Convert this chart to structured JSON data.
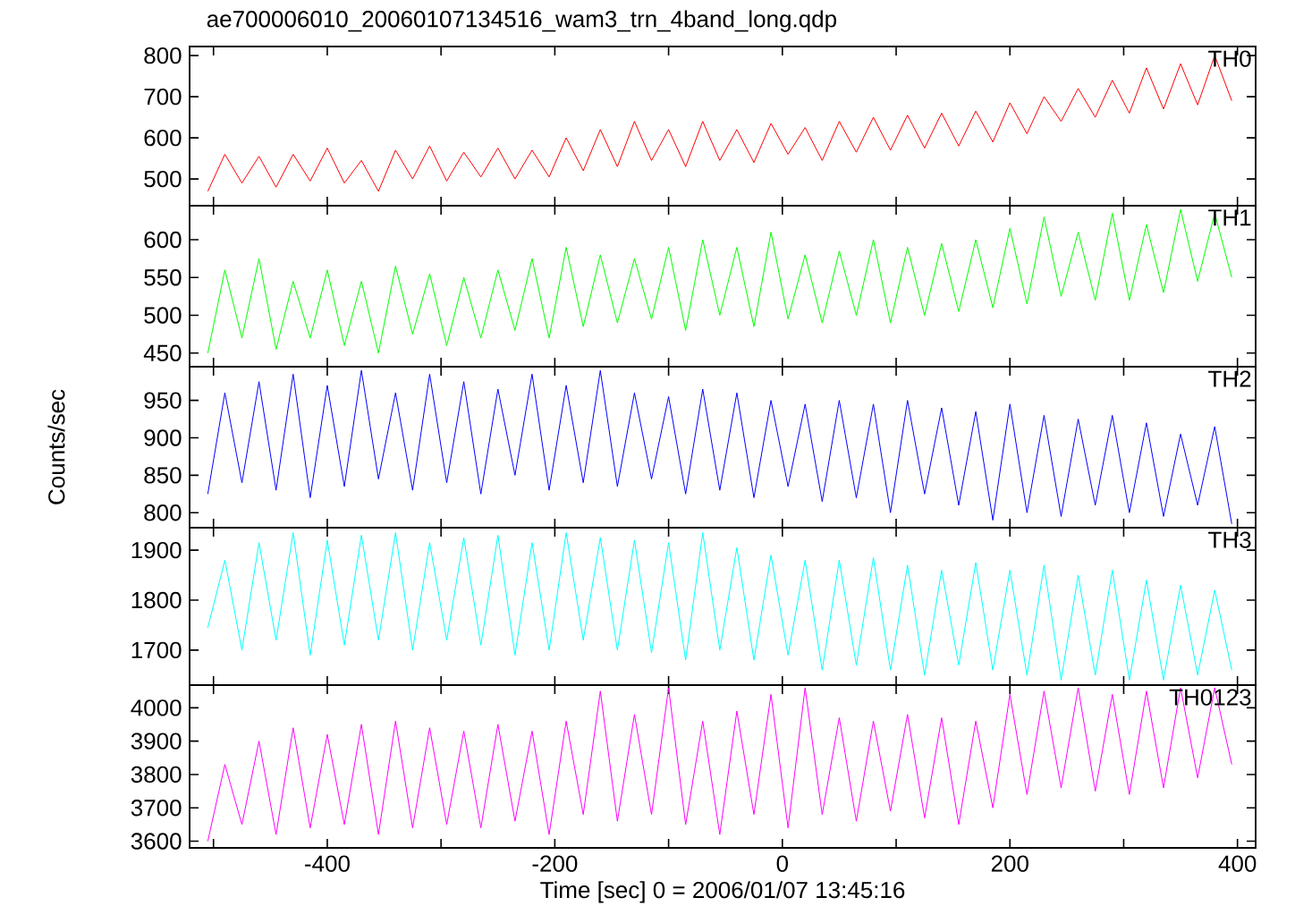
{
  "chart_data": [
    {
      "type": "line",
      "title": "ae700006010_20060107134516_wam3_trn_4band_long.qdp",
      "tick_labels": "y",
      "x": [
        -505,
        -490,
        -475,
        -460,
        -445,
        -430,
        -415,
        -400,
        -385,
        -370,
        -355,
        -340,
        -325,
        -310,
        -295,
        -280,
        -265,
        -250,
        -235,
        -220,
        -205,
        -190,
        -175,
        -160,
        -145,
        -130,
        -115,
        -100,
        -85,
        -70,
        -55,
        -40,
        -25,
        -10,
        5,
        20,
        35,
        50,
        65,
        80,
        95,
        110,
        125,
        140,
        155,
        170,
        185,
        200,
        215,
        230,
        245,
        260,
        275,
        290,
        305,
        320,
        335,
        350,
        365,
        380,
        395
      ],
      "series": [
        {
          "name": "TH0",
          "color": "#ff0000",
          "values": [
            470,
            560,
            490,
            555,
            480,
            560,
            495,
            575,
            490,
            545,
            470,
            570,
            500,
            580,
            495,
            565,
            505,
            575,
            500,
            570,
            505,
            600,
            520,
            620,
            530,
            640,
            545,
            620,
            530,
            640,
            545,
            620,
            540,
            635,
            560,
            625,
            545,
            640,
            565,
            650,
            570,
            655,
            575,
            660,
            580,
            665,
            590,
            685,
            610,
            700,
            640,
            720,
            650,
            740,
            660,
            770,
            670,
            780,
            680,
            800,
            690
          ]
        }
      ],
      "xlim": [
        -521,
        416
      ],
      "ylim": [
        435,
        822
      ],
      "xticks": [
        {
          "value": -500,
          "label": null
        },
        -400,
        {
          "value": -300,
          "label": null
        },
        -200,
        {
          "value": -100,
          "label": null
        },
        0,
        {
          "value": 100,
          "label": null
        },
        200,
        {
          "value": 300,
          "label": null
        },
        400
      ],
      "yticks": [
        500,
        600,
        700,
        800
      ]
    },
    {
      "type": "line",
      "tick_labels": "y",
      "x": [
        -505,
        -490,
        -475,
        -460,
        -445,
        -430,
        -415,
        -400,
        -385,
        -370,
        -355,
        -340,
        -325,
        -310,
        -295,
        -280,
        -265,
        -250,
        -235,
        -220,
        -205,
        -190,
        -175,
        -160,
        -145,
        -130,
        -115,
        -100,
        -85,
        -70,
        -55,
        -40,
        -25,
        -10,
        5,
        20,
        35,
        50,
        65,
        80,
        95,
        110,
        125,
        140,
        155,
        170,
        185,
        200,
        215,
        230,
        245,
        260,
        275,
        290,
        305,
        320,
        335,
        350,
        365,
        380,
        395
      ],
      "series": [
        {
          "name": "TH1",
          "color": "#00ff00",
          "values": [
            450,
            560,
            470,
            575,
            455,
            545,
            470,
            560,
            460,
            545,
            450,
            565,
            475,
            555,
            460,
            550,
            470,
            560,
            480,
            575,
            470,
            590,
            485,
            580,
            490,
            575,
            495,
            590,
            480,
            600,
            500,
            590,
            485,
            610,
            495,
            580,
            490,
            585,
            500,
            600,
            490,
            590,
            500,
            595,
            505,
            600,
            510,
            615,
            515,
            630,
            525,
            610,
            520,
            635,
            520,
            620,
            530,
            640,
            545,
            635,
            550
          ]
        }
      ],
      "xlim": [
        -521,
        416
      ],
      "ylim": [
        432,
        645
      ],
      "xticks": [
        {
          "value": -500,
          "label": null
        },
        -400,
        {
          "value": -300,
          "label": null
        },
        -200,
        {
          "value": -100,
          "label": null
        },
        0,
        {
          "value": 100,
          "label": null
        },
        200,
        {
          "value": 300,
          "label": null
        },
        400
      ],
      "yticks": [
        450,
        500,
        550,
        600
      ]
    },
    {
      "type": "line",
      "ylabel": "Counts/sec",
      "tick_labels": "y",
      "x": [
        -505,
        -490,
        -475,
        -460,
        -445,
        -430,
        -415,
        -400,
        -385,
        -370,
        -355,
        -340,
        -325,
        -310,
        -295,
        -280,
        -265,
        -250,
        -235,
        -220,
        -205,
        -190,
        -175,
        -160,
        -145,
        -130,
        -115,
        -100,
        -85,
        -70,
        -55,
        -40,
        -25,
        -10,
        5,
        20,
        35,
        50,
        65,
        80,
        95,
        110,
        125,
        140,
        155,
        170,
        185,
        200,
        215,
        230,
        245,
        260,
        275,
        290,
        305,
        320,
        335,
        350,
        365,
        380,
        395
      ],
      "series": [
        {
          "name": "TH2",
          "color": "#0000ff",
          "values": [
            825,
            960,
            840,
            975,
            830,
            985,
            820,
            970,
            835,
            990,
            845,
            960,
            830,
            985,
            840,
            975,
            825,
            965,
            850,
            985,
            830,
            970,
            840,
            990,
            835,
            960,
            845,
            955,
            825,
            965,
            830,
            960,
            820,
            950,
            835,
            945,
            815,
            950,
            820,
            945,
            800,
            950,
            825,
            940,
            810,
            935,
            790,
            945,
            800,
            930,
            795,
            925,
            810,
            930,
            800,
            920,
            795,
            905,
            810,
            915,
            785
          ]
        }
      ],
      "xlim": [
        -521,
        416
      ],
      "ylim": [
        780,
        995
      ],
      "xticks": [
        {
          "value": -500,
          "label": null
        },
        -400,
        {
          "value": -300,
          "label": null
        },
        -200,
        {
          "value": -100,
          "label": null
        },
        0,
        {
          "value": 100,
          "label": null
        },
        200,
        {
          "value": 300,
          "label": null
        },
        400
      ],
      "yticks": [
        800,
        850,
        900,
        950
      ]
    },
    {
      "type": "line",
      "tick_labels": "y",
      "x": [
        -505,
        -490,
        -475,
        -460,
        -445,
        -430,
        -415,
        -400,
        -385,
        -370,
        -355,
        -340,
        -325,
        -310,
        -295,
        -280,
        -265,
        -250,
        -235,
        -220,
        -205,
        -190,
        -175,
        -160,
        -145,
        -130,
        -115,
        -100,
        -85,
        -70,
        -55,
        -40,
        -25,
        -10,
        5,
        20,
        35,
        50,
        65,
        80,
        95,
        110,
        125,
        140,
        155,
        170,
        185,
        200,
        215,
        230,
        245,
        260,
        275,
        290,
        305,
        320,
        335,
        350,
        365,
        380,
        395
      ],
      "series": [
        {
          "name": "TH3",
          "color": "#00ffff",
          "values": [
            1745,
            1880,
            1700,
            1915,
            1720,
            1935,
            1690,
            1920,
            1710,
            1930,
            1720,
            1935,
            1700,
            1915,
            1720,
            1925,
            1710,
            1930,
            1690,
            1915,
            1700,
            1935,
            1720,
            1925,
            1700,
            1920,
            1695,
            1915,
            1680,
            1935,
            1700,
            1905,
            1680,
            1890,
            1690,
            1880,
            1660,
            1880,
            1670,
            1885,
            1660,
            1870,
            1650,
            1860,
            1670,
            1875,
            1660,
            1860,
            1650,
            1870,
            1640,
            1850,
            1650,
            1860,
            1640,
            1840,
            1640,
            1830,
            1650,
            1820,
            1660
          ]
        }
      ],
      "xlim": [
        -521,
        416
      ],
      "ylim": [
        1630,
        1945
      ],
      "xticks": [
        {
          "value": -500,
          "label": null
        },
        -400,
        {
          "value": -300,
          "label": null
        },
        -200,
        {
          "value": -100,
          "label": null
        },
        0,
        {
          "value": 100,
          "label": null
        },
        200,
        {
          "value": 300,
          "label": null
        },
        400
      ],
      "yticks": [
        1700,
        1800,
        1900
      ]
    },
    {
      "type": "line",
      "xlabel": "Time [sec] 0 = 2006/01/07 13:45:16",
      "x": [
        -505,
        -490,
        -475,
        -460,
        -445,
        -430,
        -415,
        -400,
        -385,
        -370,
        -355,
        -340,
        -325,
        -310,
        -295,
        -280,
        -265,
        -250,
        -235,
        -220,
        -205,
        -190,
        -175,
        -160,
        -145,
        -130,
        -115,
        -100,
        -85,
        -70,
        -55,
        -40,
        -25,
        -10,
        5,
        20,
        35,
        50,
        65,
        80,
        95,
        110,
        125,
        140,
        155,
        170,
        185,
        200,
        215,
        230,
        245,
        260,
        275,
        290,
        305,
        320,
        335,
        350,
        365,
        380,
        395
      ],
      "series": [
        {
          "name": "TH0123",
          "color": "#ff00ff",
          "values": [
            3600,
            3830,
            3650,
            3900,
            3620,
            3940,
            3640,
            3920,
            3650,
            3950,
            3620,
            3960,
            3640,
            3940,
            3650,
            3930,
            3640,
            3950,
            3660,
            3930,
            3620,
            3960,
            3680,
            4050,
            3660,
            3980,
            3680,
            4060,
            3650,
            3960,
            3620,
            3990,
            3680,
            4040,
            3640,
            4060,
            3680,
            3970,
            3660,
            3960,
            3690,
            3980,
            3670,
            3970,
            3650,
            3960,
            3700,
            4040,
            3740,
            4050,
            3760,
            4060,
            3750,
            4040,
            3740,
            4050,
            3760,
            4060,
            3790,
            4060,
            3830
          ]
        }
      ],
      "xlim": [
        -521,
        416
      ],
      "ylim": [
        3580,
        4068
      ],
      "xticks": [
        {
          "value": -500,
          "label": null
        },
        -400,
        {
          "value": -300,
          "label": null
        },
        -200,
        {
          "value": -100,
          "label": null
        },
        0,
        {
          "value": 100,
          "label": null
        },
        200,
        {
          "value": 300,
          "label": null
        },
        400
      ],
      "yticks": [
        3600,
        3700,
        3800,
        3900,
        4000
      ]
    }
  ]
}
